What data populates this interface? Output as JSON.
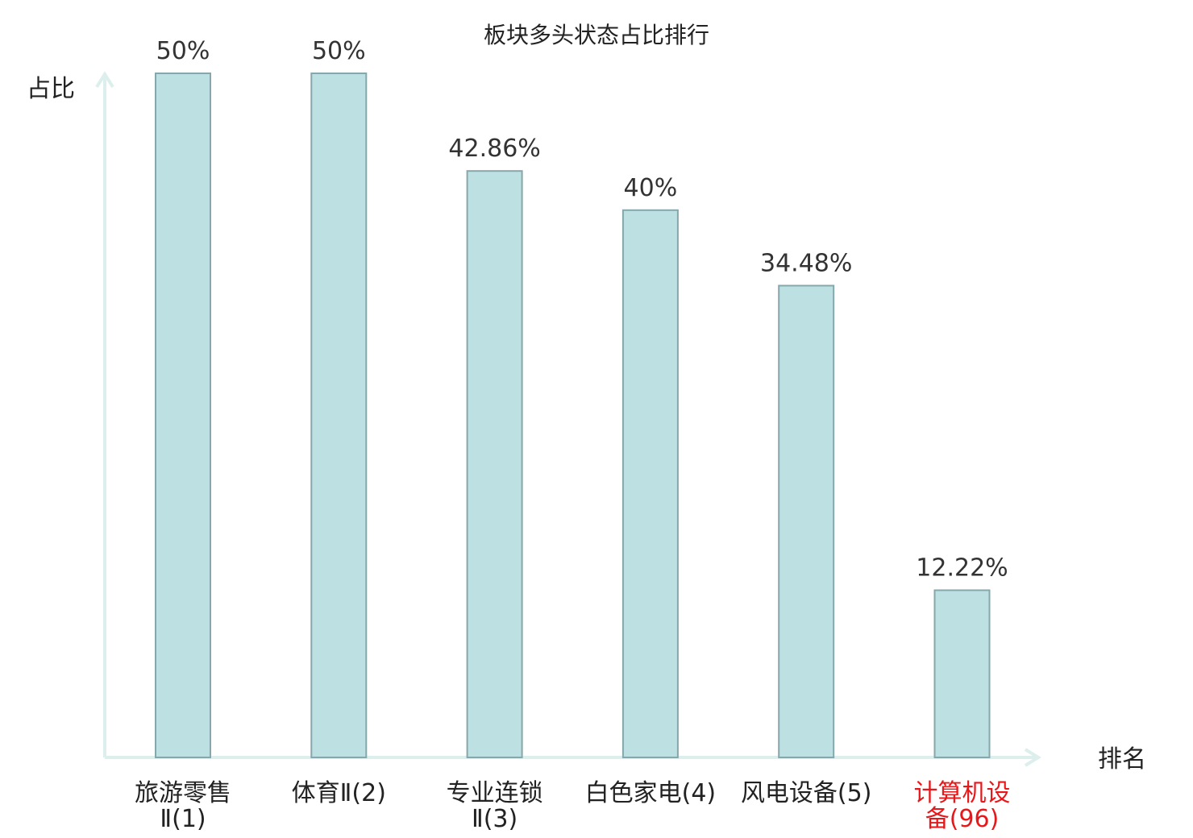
{
  "chart_data": {
    "type": "bar",
    "title": "板块多头状态占比排行",
    "ylabel": "占比",
    "xlabel": "排名",
    "ylim": [
      0,
      50
    ],
    "grid": false,
    "legend": "none",
    "categories": [
      [
        "旅游零售",
        "Ⅱ(1)"
      ],
      [
        "体育Ⅱ(2)"
      ],
      [
        "专业连锁",
        "Ⅱ(3)"
      ],
      [
        "白色家电(4)"
      ],
      [
        "风电设备(5)"
      ],
      [
        "计算机设",
        "备(96)"
      ]
    ],
    "values": [
      50,
      50,
      42.86,
      40,
      34.48,
      12.22
    ],
    "value_labels": [
      "50%",
      "50%",
      "42.86%",
      "40%",
      "34.48%",
      "12.22%"
    ],
    "highlight_index": 5,
    "colors": {
      "bar_fill": "#bde0e3",
      "bar_stroke": "#86a7ab",
      "axis": "#dcefed",
      "text": "#222222",
      "highlight_text": "#e8171a"
    }
  }
}
